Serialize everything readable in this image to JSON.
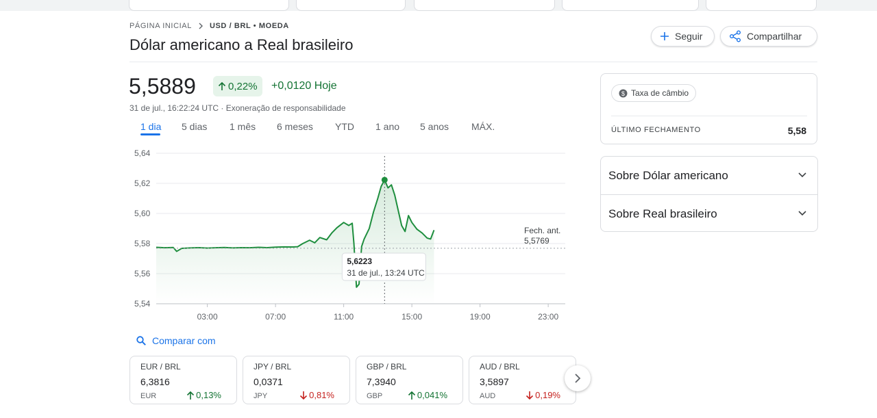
{
  "breadcrumb": [
    "PÁGINA INICIAL",
    "USD / BRL • MOEDA"
  ],
  "title": "Dólar americano a Real brasileiro",
  "actions": [
    "Seguir",
    "Compartilhar"
  ],
  "quote": {
    "price": "5,5889",
    "change_percent": "0,22%",
    "change_today": "+0,0120 Hoje",
    "timestamp": "31 de jul., 16:22:24 UTC · Exoneração de responsabilidade"
  },
  "ranges": [
    "1 dia",
    "5 dias",
    "1 mês",
    "6 meses",
    "YTD",
    "1 ano",
    "5 anos",
    "MÁX."
  ],
  "chart_data": {
    "type": "line",
    "color": "#1e8e3e",
    "grid": true,
    "x": [
      0,
      0.5,
      1,
      1.2,
      1.5,
      2,
      2.5,
      3,
      3.5,
      4,
      4.5,
      5,
      5.5,
      6,
      6.5,
      7,
      7.5,
      8,
      8.3,
      8.6,
      9,
      9.3,
      9.6,
      10,
      10.3,
      10.6,
      11,
      11.3,
      11.5,
      11.6,
      11.75,
      11.9,
      12.05,
      12.2,
      12.5,
      12.75,
      13,
      13.2,
      13.4,
      13.6,
      13.8,
      14,
      14.2,
      14.4,
      14.6,
      14.8,
      15,
      15.3,
      15.6,
      15.9,
      16.1,
      16.3
    ],
    "values": [
      5.5775,
      5.5772,
      5.5774,
      5.5748,
      5.5768,
      5.5771,
      5.5773,
      5.577,
      5.5772,
      5.5774,
      5.5771,
      5.5773,
      5.5772,
      5.5775,
      5.5773,
      5.5776,
      5.5778,
      5.5777,
      5.5779,
      5.58,
      5.5822,
      5.5805,
      5.584,
      5.5825,
      5.587,
      5.5905,
      5.594,
      5.592,
      5.5935,
      5.58,
      5.551,
      5.553,
      5.578,
      5.583,
      5.59,
      5.601,
      5.61,
      5.618,
      5.6223,
      5.617,
      5.619,
      5.612,
      5.602,
      5.592,
      5.588,
      5.5986,
      5.594,
      5.5895,
      5.587,
      5.5836,
      5.583,
      5.5889
    ],
    "xlim": [
      0,
      24
    ],
    "ylim": [
      5.54,
      5.64
    ],
    "xticks": [
      {
        "value": 3,
        "label": "03:00"
      },
      {
        "value": 7,
        "label": "07:00"
      },
      {
        "value": 11,
        "label": "11:00"
      },
      {
        "value": 15,
        "label": "15:00"
      },
      {
        "value": 19,
        "label": "19:00"
      },
      {
        "value": 23,
        "label": "23:00"
      }
    ],
    "yticks": [
      {
        "value": 5.54,
        "label": "5,54"
      },
      {
        "value": 5.56,
        "label": "5,56"
      },
      {
        "value": 5.58,
        "label": "5,58"
      },
      {
        "value": 5.6,
        "label": "5,60"
      },
      {
        "value": 5.62,
        "label": "5,62"
      },
      {
        "value": 5.64,
        "label": "5,64"
      }
    ],
    "previous_close": {
      "label": "Fech. ant.",
      "value": 5.5769,
      "value_label": "5,5769"
    },
    "tooltip": {
      "x": 13.4,
      "value": 5.6223,
      "value_label": "5,6223",
      "time_label": "31 de jul., 13:24 UTC"
    }
  },
  "compare": "Comparar com",
  "cards": [
    {
      "pair": "EUR / BRL",
      "price": "6,3816",
      "code": "EUR",
      "change": "0,13%"
    },
    {
      "pair": "JPY / BRL",
      "price": "0,0371",
      "code": "JPY",
      "change": "0,81%"
    },
    {
      "pair": "GBP / BRL",
      "price": "7,3940",
      "code": "GBP",
      "change": "0,041%"
    },
    {
      "pair": "AUD / BRL",
      "price": "3,5897",
      "code": "AUD",
      "change": "0,19%"
    }
  ],
  "side": {
    "chip": "Taxa de câmbio",
    "label": "ÚLTIMO FECHAMENTO",
    "value": "5,58",
    "about": [
      "Sobre Dólar americano",
      "Sobre Real brasileiro"
    ]
  }
}
